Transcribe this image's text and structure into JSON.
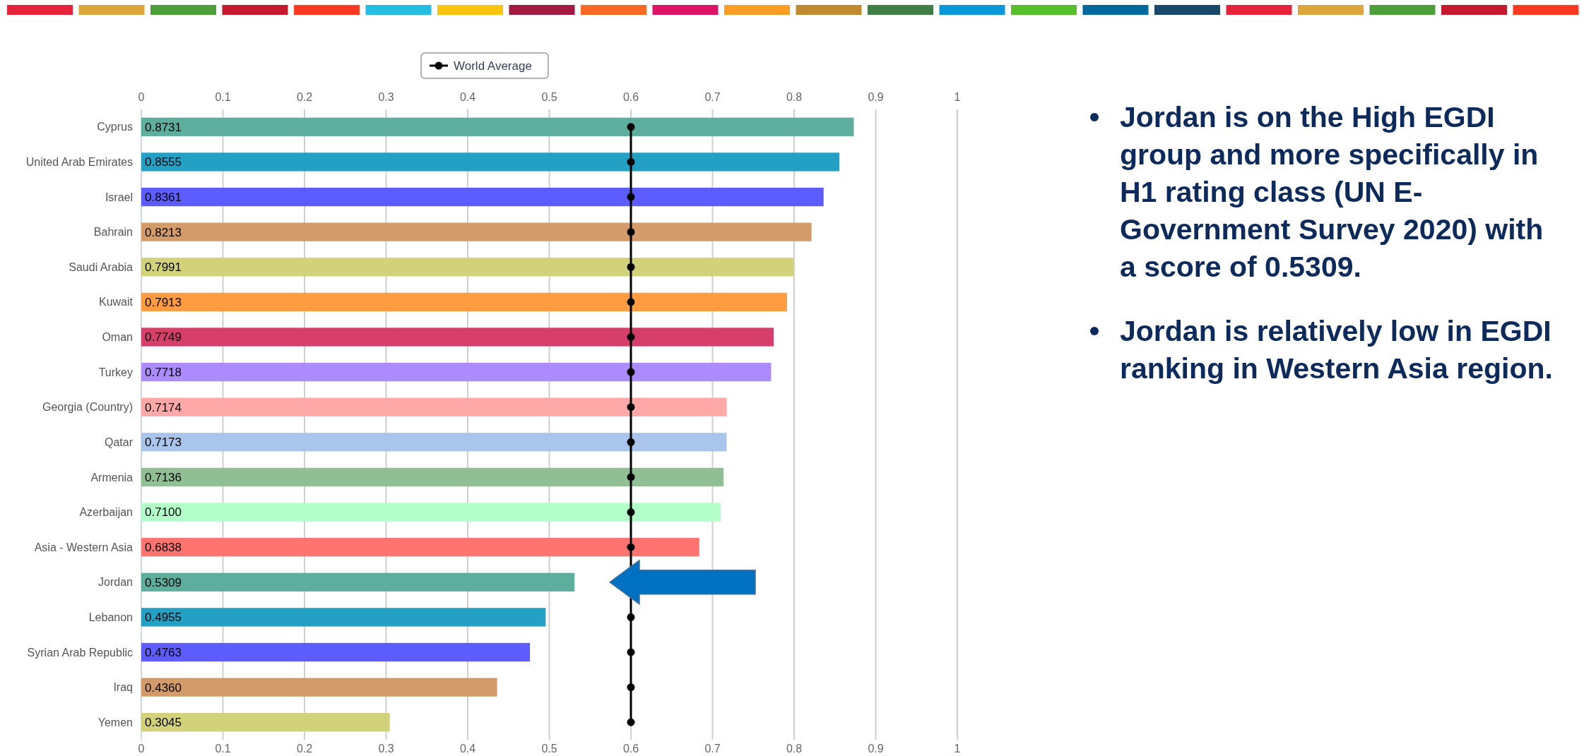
{
  "chart_data": {
    "type": "bar",
    "orientation": "horizontal",
    "categories": [
      "Cyprus",
      "United Arab Emirates",
      "Israel",
      "Bahrain",
      "Saudi Arabia",
      "Kuwait",
      "Oman",
      "Turkey",
      "Georgia (Country)",
      "Qatar",
      "Armenia",
      "Azerbaijan",
      "Asia - Western Asia",
      "Jordan",
      "Lebanon",
      "Syrian Arab Republic",
      "Iraq",
      "Yemen"
    ],
    "series": [
      {
        "colors": [
          "#5eae9e",
          "#25a0c5",
          "#5c5cff",
          "#d39b6a",
          "#d1d27a",
          "#ff9c42",
          "#d63f69",
          "#ac8bfc",
          "#ffa8a8",
          "#a9c5eb",
          "#8fbf93",
          "#b3ffca",
          "#ff7470",
          "#5eae9e",
          "#25a0c5",
          "#5c5cff",
          "#d39b6a",
          "#d1d27a"
        ],
        "values": [
          0.8731,
          0.8555,
          0.8361,
          0.8213,
          0.7991,
          0.7913,
          0.7749,
          0.7718,
          0.7174,
          0.7173,
          0.7136,
          0.71,
          0.6838,
          0.5309,
          0.4955,
          0.4763,
          0.436,
          0.3045
        ],
        "value_labels": [
          "0.8731",
          "0.8555",
          "0.8361",
          "0.8213",
          "0.7991",
          "0.7913",
          "0.7749",
          "0.7718",
          "0.7174",
          "0.7173",
          "0.7136",
          "0.7100",
          "0.6838",
          "0.5309",
          "0.4955",
          "0.4763",
          "0.4360",
          "0.3045"
        ]
      },
      {
        "type": "line",
        "name": "World Average",
        "color": "#000000",
        "values": [
          0.6,
          0.6,
          0.6,
          0.6,
          0.6,
          0.6,
          0.6,
          0.6,
          0.6,
          0.6,
          0.6,
          0.6,
          0.6,
          null,
          0.6,
          0.6,
          0.6,
          0.6
        ]
      }
    ],
    "xlim": [
      0,
      1
    ],
    "xticks": [
      0,
      0.1,
      0.2,
      0.3,
      0.4,
      0.5,
      0.6,
      0.7,
      0.8,
      0.9,
      1
    ],
    "x2lim": [
      0,
      1
    ],
    "x2ticks": [
      0,
      0.1,
      0.2,
      0.3,
      0.4,
      0.5,
      0.6,
      0.7,
      0.8,
      0.9,
      1
    ],
    "grid": "x",
    "legend": "top",
    "marker": "circle",
    "line_style": "solid",
    "annotations": [
      "Jordan is on the High EGDI group and more specifically in H1 rating class (UN E-Government Survey 2020) with a score of 0.5309.",
      "Jordan is relatively low in EGDI ranking in Western Asia region."
    ]
  }
}
